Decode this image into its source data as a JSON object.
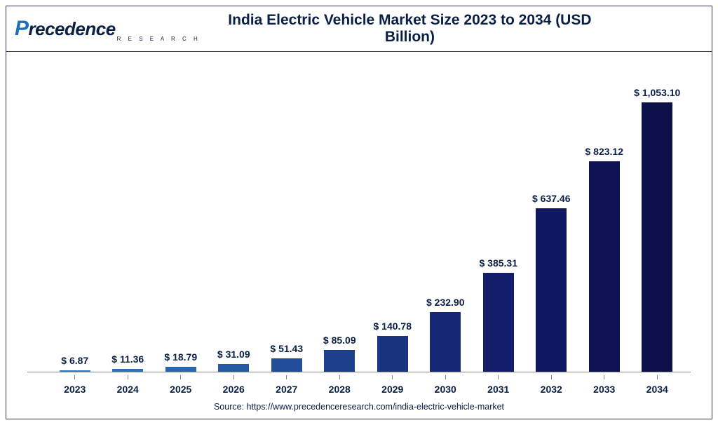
{
  "logo": {
    "brand_p": "P",
    "brand_rest": "recedence",
    "brand_sub": "R E S E A R C H"
  },
  "title": "India Electric Vehicle Market Size 2023 to 2034 (USD Billion)",
  "source": "Source: https://www.precedenceresearch.com/india-electric-vehicle-market",
  "chart": {
    "type": "bar",
    "ylim_max": 1200,
    "label_prefix": "$ ",
    "label_fontsize": 14,
    "label_fontweight": 700,
    "label_color": "#0a1f44",
    "xtick_fontsize": 14,
    "xtick_fontweight": 700,
    "xtick_color": "#0a1f44",
    "bar_width_pct": 58,
    "axis_color": "#888888",
    "background_color": "#ffffff",
    "border_color": "#333355",
    "categories": [
      "2023",
      "2024",
      "2025",
      "2026",
      "2027",
      "2028",
      "2029",
      "2030",
      "2031",
      "2032",
      "2033",
      "2034"
    ],
    "values": [
      6.87,
      11.36,
      18.79,
      31.09,
      51.43,
      85.09,
      140.78,
      232.9,
      385.31,
      637.46,
      823.12,
      1053.1
    ],
    "value_labels": [
      "6.87",
      "11.36",
      "18.79",
      "31.09",
      "51.43",
      "85.09",
      "140.78",
      "232.90",
      "385.31",
      "637.46",
      "823.12",
      "1,053.10"
    ],
    "bar_colors": [
      "#2f7fc9",
      "#2b72bd",
      "#2866b1",
      "#2459a5",
      "#214d99",
      "#1d408d",
      "#1a3481",
      "#162875",
      "#131d6a",
      "#10165f",
      "#0e1254",
      "#0c0f4a"
    ]
  }
}
